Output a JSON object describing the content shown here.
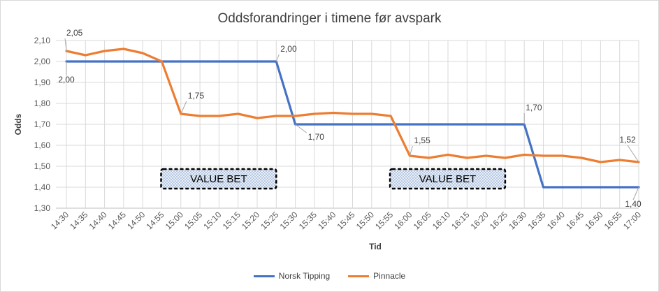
{
  "chart_data": {
    "type": "line",
    "title": "Oddsforandringer  i timene før avspark",
    "xlabel": "Tid",
    "ylabel": "Odds",
    "ylim": [
      1.3,
      2.1
    ],
    "yticks": [
      "1,30",
      "1,40",
      "1,50",
      "1,60",
      "1,70",
      "1,80",
      "1,90",
      "2,00",
      "2,10"
    ],
    "categories": [
      "14:30",
      "14:35",
      "14:40",
      "14:45",
      "14:50",
      "14:55",
      "15:00",
      "15:05",
      "15:10",
      "15:15",
      "15:20",
      "15:25",
      "15:30",
      "15:35",
      "15:40",
      "15:45",
      "15:50",
      "15:55",
      "16:00",
      "16:05",
      "16:10",
      "16:15",
      "16:20",
      "16:25",
      "16:30",
      "16:35",
      "16:40",
      "16:45",
      "16:50",
      "16:55",
      "17:00"
    ],
    "grid": true,
    "legend_position": "bottom",
    "series": [
      {
        "name": "Norsk Tipping",
        "color": "#4472c4",
        "values": [
          2.0,
          2.0,
          2.0,
          2.0,
          2.0,
          2.0,
          2.0,
          2.0,
          2.0,
          2.0,
          2.0,
          2.0,
          1.7,
          1.7,
          1.7,
          1.7,
          1.7,
          1.7,
          1.7,
          1.7,
          1.7,
          1.7,
          1.7,
          1.7,
          1.7,
          1.4,
          1.4,
          1.4,
          1.4,
          1.4,
          1.4
        ]
      },
      {
        "name": "Pinnacle",
        "color": "#ed7d31",
        "values": [
          2.05,
          2.03,
          2.05,
          2.06,
          2.04,
          2.0,
          1.75,
          1.74,
          1.74,
          1.75,
          1.73,
          1.74,
          1.74,
          1.75,
          1.755,
          1.75,
          1.75,
          1.74,
          1.55,
          1.54,
          1.555,
          1.54,
          1.55,
          1.54,
          1.555,
          1.55,
          1.55,
          1.54,
          1.52,
          1.53,
          1.52
        ]
      }
    ],
    "annotations": [
      {
        "series": 1,
        "index": 0,
        "text": "2,05"
      },
      {
        "series": 0,
        "index": 0,
        "text": "2,00"
      },
      {
        "series": 1,
        "index": 6,
        "text": "1,75"
      },
      {
        "series": 0,
        "index": 11,
        "text": "2,00"
      },
      {
        "series": 0,
        "index": 12,
        "text": "1,70"
      },
      {
        "series": 1,
        "index": 18,
        "text": "1,55"
      },
      {
        "series": 0,
        "index": 24,
        "text": "1,70"
      },
      {
        "series": 1,
        "index": 30,
        "text": "1,52"
      },
      {
        "series": 0,
        "index": 30,
        "text": "1,40"
      }
    ],
    "value_boxes": [
      {
        "text": "VALUE BET",
        "from_index": 5,
        "to_index": 11
      },
      {
        "text": "VALUE BET",
        "from_index": 17,
        "to_index": 23
      }
    ]
  }
}
